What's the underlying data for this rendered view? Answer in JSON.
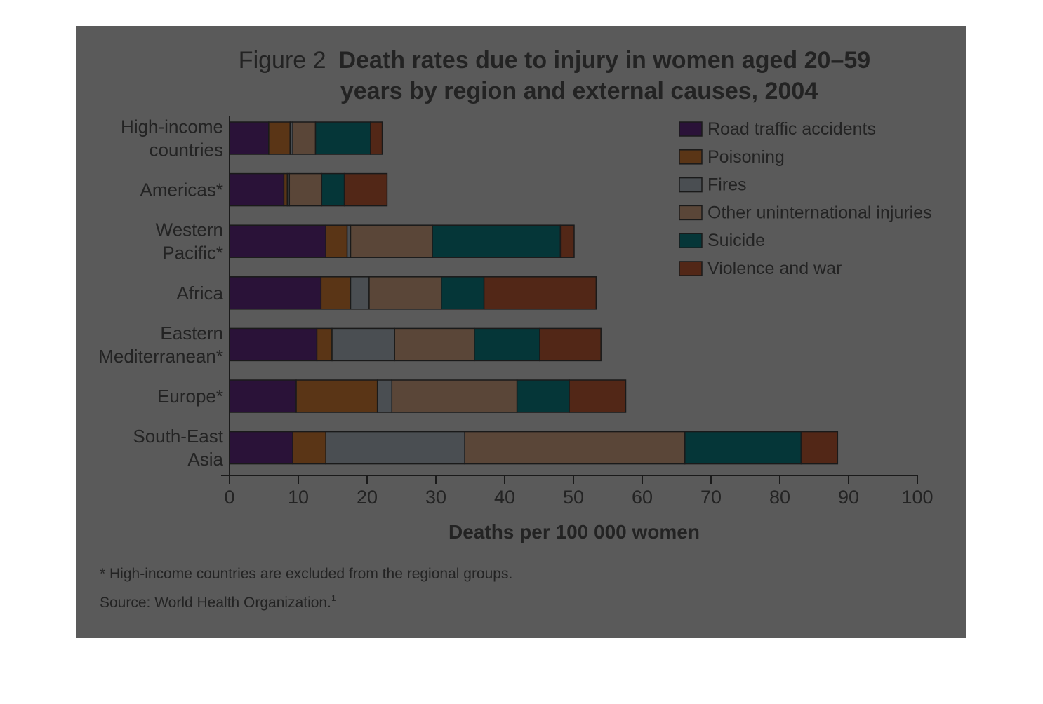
{
  "chart_data": {
    "type": "bar",
    "orientation": "horizontal",
    "stacked": true,
    "title_prefix": "Figure 2",
    "title_lines": [
      "Death rates due to injury in women aged 20–59",
      "years by region and external causes, 2004"
    ],
    "xlabel": "Deaths per 100 000 women",
    "xlim": [
      0,
      100
    ],
    "xticks": [
      "0",
      "10",
      "20",
      "30",
      "40",
      "50",
      "60",
      "70",
      "80",
      "90",
      "100"
    ],
    "categories": [
      [
        "High-income",
        "countries"
      ],
      [
        "Americas*"
      ],
      [
        "Western",
        "Pacific*"
      ],
      [
        "Africa"
      ],
      [
        "Eastern",
        "Mediterranean*"
      ],
      [
        "Europe*"
      ],
      [
        "South-East",
        "Asia"
      ]
    ],
    "series": [
      {
        "name": "Road traffic accidents",
        "color": "#2a1238",
        "values": [
          5.7,
          7.9,
          14.0,
          13.3,
          12.7,
          9.7,
          9.2
        ]
      },
      {
        "name": "Poisoning",
        "color": "#5a3516",
        "values": [
          3.1,
          0.5,
          3.1,
          4.3,
          2.2,
          11.8,
          4.8
        ]
      },
      {
        "name": "Fires",
        "color": "#4a4e52",
        "values": [
          0.4,
          0.3,
          0.5,
          2.7,
          9.1,
          2.1,
          20.2
        ]
      },
      {
        "name": "Other uninternational injuries",
        "color": "#5a4638",
        "values": [
          3.3,
          4.7,
          11.9,
          10.5,
          11.6,
          18.2,
          32.0
        ]
      },
      {
        "name": "Suicide",
        "color": "#053638",
        "values": [
          8.0,
          3.3,
          18.6,
          6.2,
          9.5,
          7.6,
          16.9
        ]
      },
      {
        "name": "Violence and war",
        "color": "#522717",
        "values": [
          1.7,
          6.2,
          2.0,
          16.3,
          8.9,
          8.2,
          5.3
        ]
      }
    ],
    "legend_position": "top-right",
    "grid": false
  },
  "notes": [
    "* High-income countries are excluded from the regional groups.",
    "Source: World Health Organization."
  ],
  "source_superscript": "1"
}
